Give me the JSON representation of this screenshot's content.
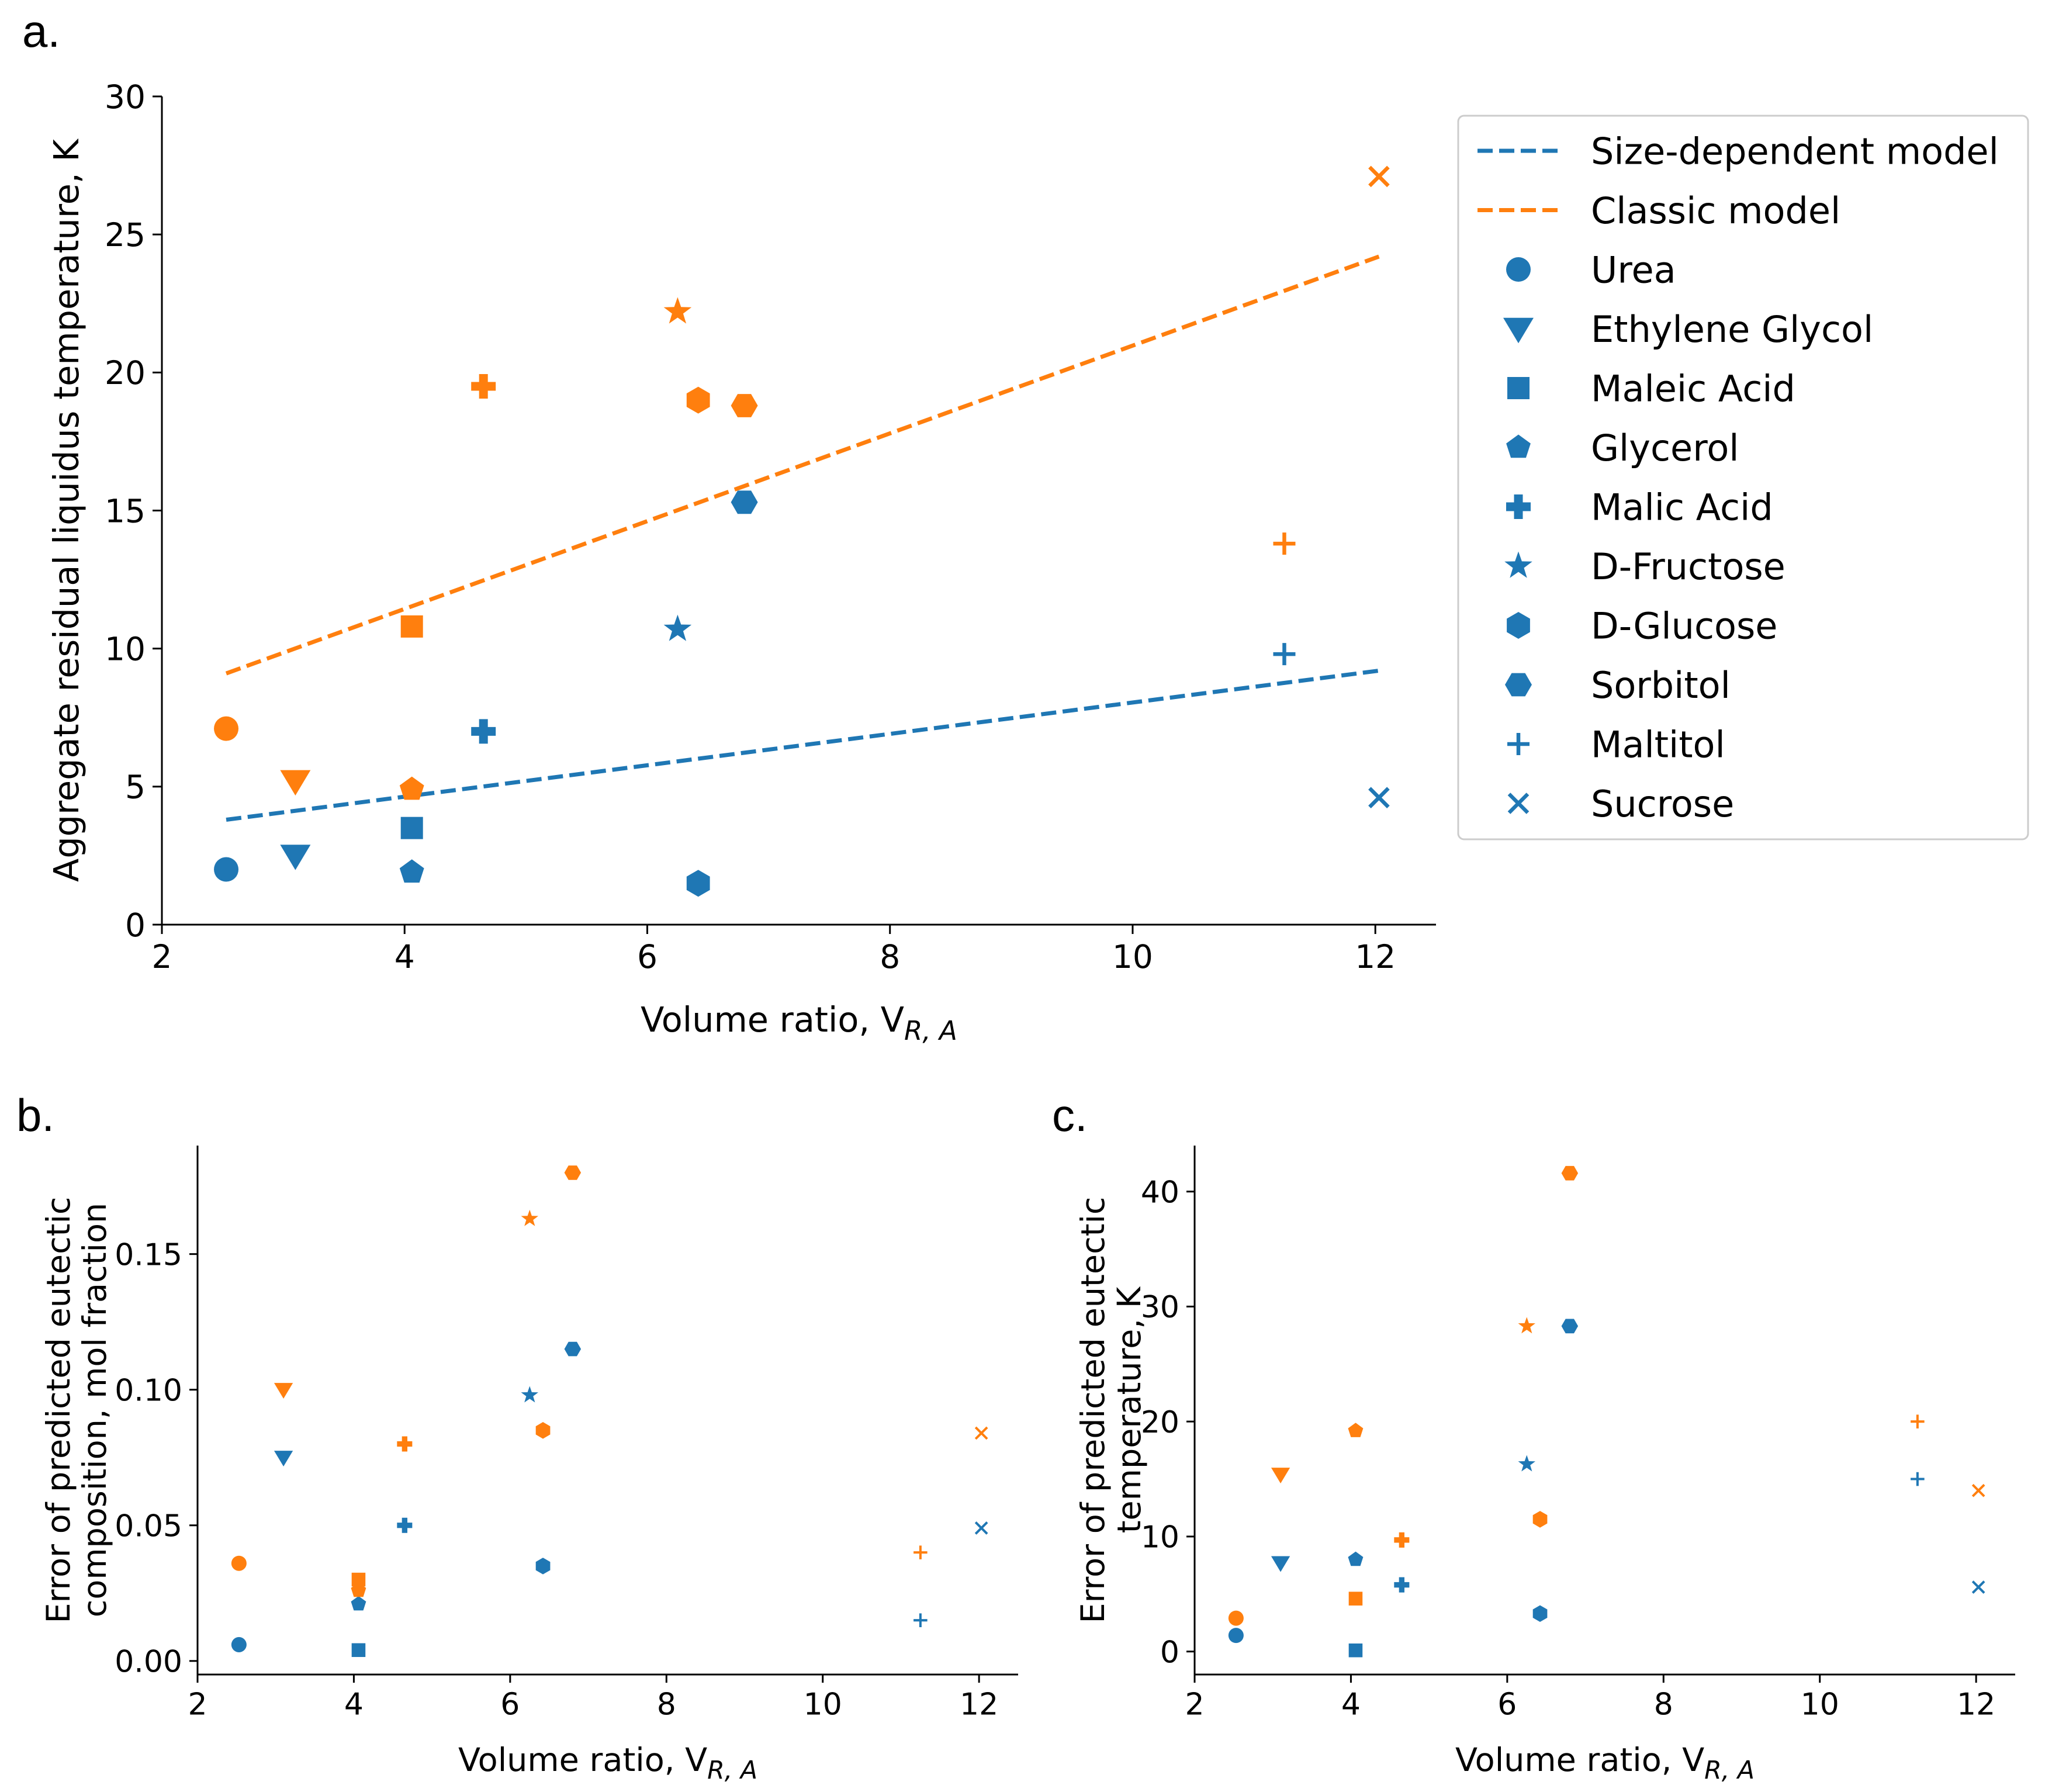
{
  "colors": {
    "size_dependent": "#1f77b4",
    "classic": "#ff7f0e"
  },
  "legend": {
    "lines": [
      {
        "label": "Size-dependent model",
        "series": "size_dependent"
      },
      {
        "label": "Classic model",
        "series": "classic"
      }
    ],
    "markers": [
      {
        "label": "Urea",
        "marker": "circle"
      },
      {
        "label": "Ethylene Glycol",
        "marker": "triangle-down"
      },
      {
        "label": "Maleic Acid",
        "marker": "square"
      },
      {
        "label": "Glycerol",
        "marker": "pentagon"
      },
      {
        "label": "Malic Acid",
        "marker": "plus-filled"
      },
      {
        "label": "D-Fructose",
        "marker": "star"
      },
      {
        "label": "D-Glucose",
        "marker": "hexagon"
      },
      {
        "label": "Sorbitol",
        "marker": "hexagon-flat"
      },
      {
        "label": "Maltitol",
        "marker": "plus"
      },
      {
        "label": "Sucrose",
        "marker": "x"
      }
    ]
  },
  "chart_data": [
    {
      "id": "a",
      "panel_label": "a.",
      "type": "scatter",
      "xlabel": "Volume ratio, V",
      "xlabel_sub": "R, A",
      "ylabel": "Aggregate residual liquidus temperature, K",
      "xlim": [
        2,
        12.5
      ],
      "ylim": [
        0,
        30
      ],
      "xticks": [
        2,
        4,
        6,
        8,
        10,
        12
      ],
      "yticks": [
        0,
        5,
        10,
        15,
        20,
        25,
        30
      ],
      "ytick_decimals": 0,
      "lines": [
        {
          "name": "Size-dependent model",
          "series": "size_dependent",
          "x": [
            2.53,
            12.03
          ],
          "y": [
            3.8,
            9.2
          ]
        },
        {
          "name": "Classic model",
          "series": "classic",
          "x": [
            2.53,
            12.03
          ],
          "y": [
            9.1,
            24.2
          ]
        }
      ],
      "series": [
        {
          "name": "Size-dependent model",
          "series": "size_dependent",
          "points": [
            {
              "compound": "Urea",
              "marker": "circle",
              "x": 2.53,
              "y": 2.0
            },
            {
              "compound": "Ethylene Glycol",
              "marker": "triangle-down",
              "x": 3.1,
              "y": 2.5
            },
            {
              "compound": "Maleic Acid",
              "marker": "square",
              "x": 4.06,
              "y": 3.5
            },
            {
              "compound": "Glycerol",
              "marker": "pentagon",
              "x": 4.06,
              "y": 1.9
            },
            {
              "compound": "Malic Acid",
              "marker": "plus-filled",
              "x": 4.65,
              "y": 7.0
            },
            {
              "compound": "D-Fructose",
              "marker": "star",
              "x": 6.25,
              "y": 10.7
            },
            {
              "compound": "D-Glucose",
              "marker": "hexagon",
              "x": 6.42,
              "y": 1.5
            },
            {
              "compound": "Sorbitol",
              "marker": "hexagon-flat",
              "x": 6.8,
              "y": 15.3
            },
            {
              "compound": "Maltitol",
              "marker": "plus",
              "x": 11.25,
              "y": 9.8
            },
            {
              "compound": "Sucrose",
              "marker": "x",
              "x": 12.03,
              "y": 4.6
            }
          ]
        },
        {
          "name": "Classic model",
          "series": "classic",
          "points": [
            {
              "compound": "Urea",
              "marker": "circle",
              "x": 2.53,
              "y": 7.1
            },
            {
              "compound": "Ethylene Glycol",
              "marker": "triangle-down",
              "x": 3.1,
              "y": 5.2
            },
            {
              "compound": "Maleic Acid",
              "marker": "square",
              "x": 4.06,
              "y": 10.8
            },
            {
              "compound": "Glycerol",
              "marker": "pentagon",
              "x": 4.06,
              "y": 4.9
            },
            {
              "compound": "Malic Acid",
              "marker": "plus-filled",
              "x": 4.65,
              "y": 19.5
            },
            {
              "compound": "D-Fructose",
              "marker": "star",
              "x": 6.25,
              "y": 22.2
            },
            {
              "compound": "D-Glucose",
              "marker": "hexagon",
              "x": 6.42,
              "y": 19.0
            },
            {
              "compound": "Sorbitol",
              "marker": "hexagon-flat",
              "x": 6.8,
              "y": 18.8
            },
            {
              "compound": "Maltitol",
              "marker": "plus",
              "x": 11.25,
              "y": 13.8
            },
            {
              "compound": "Sucrose",
              "marker": "x",
              "x": 12.03,
              "y": 27.1
            }
          ]
        }
      ]
    },
    {
      "id": "b",
      "panel_label": "b.",
      "type": "scatter",
      "xlabel": "Volume ratio, V",
      "xlabel_sub": "R, A",
      "ylabel": [
        "Error of predicted eutectic",
        "composition, mol fraction"
      ],
      "xlim": [
        2,
        12.5
      ],
      "ylim": [
        -0.005,
        0.19
      ],
      "xticks": [
        2,
        4,
        6,
        8,
        10,
        12
      ],
      "yticks": [
        0.0,
        0.05,
        0.1,
        0.15
      ],
      "ytick_decimals": 2,
      "series": [
        {
          "name": "Size-dependent model",
          "series": "size_dependent",
          "points": [
            {
              "compound": "Urea",
              "marker": "circle",
              "x": 2.53,
              "y": 0.006
            },
            {
              "compound": "Ethylene Glycol",
              "marker": "triangle-down",
              "x": 3.1,
              "y": 0.075
            },
            {
              "compound": "Maleic Acid",
              "marker": "square",
              "x": 4.06,
              "y": 0.004
            },
            {
              "compound": "Glycerol",
              "marker": "pentagon",
              "x": 4.06,
              "y": 0.021
            },
            {
              "compound": "Malic Acid",
              "marker": "plus-filled",
              "x": 4.65,
              "y": 0.05
            },
            {
              "compound": "D-Fructose",
              "marker": "star",
              "x": 6.25,
              "y": 0.098
            },
            {
              "compound": "D-Glucose",
              "marker": "hexagon",
              "x": 6.42,
              "y": 0.035
            },
            {
              "compound": "Sorbitol",
              "marker": "hexagon-flat",
              "x": 6.8,
              "y": 0.115
            },
            {
              "compound": "Maltitol",
              "marker": "plus",
              "x": 11.25,
              "y": 0.015
            },
            {
              "compound": "Sucrose",
              "marker": "x",
              "x": 12.03,
              "y": 0.049
            }
          ]
        },
        {
          "name": "Classic model",
          "series": "classic",
          "points": [
            {
              "compound": "Urea",
              "marker": "circle",
              "x": 2.53,
              "y": 0.036
            },
            {
              "compound": "Ethylene Glycol",
              "marker": "triangle-down",
              "x": 3.1,
              "y": 0.1
            },
            {
              "compound": "Maleic Acid",
              "marker": "square",
              "x": 4.06,
              "y": 0.03
            },
            {
              "compound": "Glycerol",
              "marker": "pentagon",
              "x": 4.06,
              "y": 0.026
            },
            {
              "compound": "Malic Acid",
              "marker": "plus-filled",
              "x": 4.65,
              "y": 0.08
            },
            {
              "compound": "D-Fructose",
              "marker": "star",
              "x": 6.25,
              "y": 0.163
            },
            {
              "compound": "D-Glucose",
              "marker": "hexagon",
              "x": 6.42,
              "y": 0.085
            },
            {
              "compound": "Sorbitol",
              "marker": "hexagon-flat",
              "x": 6.8,
              "y": 0.18
            },
            {
              "compound": "Maltitol",
              "marker": "plus",
              "x": 11.25,
              "y": 0.04
            },
            {
              "compound": "Sucrose",
              "marker": "x",
              "x": 12.03,
              "y": 0.084
            }
          ]
        }
      ]
    },
    {
      "id": "c",
      "panel_label": "c.",
      "type": "scatter",
      "xlabel": "Volume ratio, V",
      "xlabel_sub": "R, A",
      "ylabel": [
        "Error of predicted eutectic",
        "temperature, K"
      ],
      "xlim": [
        2,
        12.5
      ],
      "ylim": [
        -2,
        44
      ],
      "xticks": [
        2,
        4,
        6,
        8,
        10,
        12
      ],
      "yticks": [
        0,
        10,
        20,
        30,
        40
      ],
      "ytick_decimals": 0,
      "series": [
        {
          "name": "Size-dependent model",
          "series": "size_dependent",
          "points": [
            {
              "compound": "Urea",
              "marker": "circle",
              "x": 2.53,
              "y": 1.4
            },
            {
              "compound": "Ethylene Glycol",
              "marker": "triangle-down",
              "x": 3.1,
              "y": 7.7
            },
            {
              "compound": "Maleic Acid",
              "marker": "square",
              "x": 4.06,
              "y": 0.1
            },
            {
              "compound": "Glycerol",
              "marker": "pentagon",
              "x": 4.06,
              "y": 8.0
            },
            {
              "compound": "Malic Acid",
              "marker": "plus-filled",
              "x": 4.65,
              "y": 5.8
            },
            {
              "compound": "D-Fructose",
              "marker": "star",
              "x": 6.25,
              "y": 16.3
            },
            {
              "compound": "D-Glucose",
              "marker": "hexagon",
              "x": 6.42,
              "y": 3.3
            },
            {
              "compound": "Sorbitol",
              "marker": "hexagon-flat",
              "x": 6.8,
              "y": 28.3
            },
            {
              "compound": "Maltitol",
              "marker": "plus",
              "x": 11.25,
              "y": 15.0
            },
            {
              "compound": "Sucrose",
              "marker": "x",
              "x": 12.03,
              "y": 5.6
            }
          ]
        },
        {
          "name": "Classic model",
          "series": "classic",
          "points": [
            {
              "compound": "Urea",
              "marker": "circle",
              "x": 2.53,
              "y": 2.9
            },
            {
              "compound": "Ethylene Glycol",
              "marker": "triangle-down",
              "x": 3.1,
              "y": 15.4
            },
            {
              "compound": "Maleic Acid",
              "marker": "square",
              "x": 4.06,
              "y": 4.6
            },
            {
              "compound": "Glycerol",
              "marker": "pentagon",
              "x": 4.06,
              "y": 19.2
            },
            {
              "compound": "Malic Acid",
              "marker": "plus-filled",
              "x": 4.65,
              "y": 9.7
            },
            {
              "compound": "D-Fructose",
              "marker": "star",
              "x": 6.25,
              "y": 28.3
            },
            {
              "compound": "D-Glucose",
              "marker": "hexagon",
              "x": 6.42,
              "y": 11.5
            },
            {
              "compound": "Sorbitol",
              "marker": "hexagon-flat",
              "x": 6.8,
              "y": 41.6
            },
            {
              "compound": "Maltitol",
              "marker": "plus",
              "x": 11.25,
              "y": 20.0
            },
            {
              "compound": "Sucrose",
              "marker": "x",
              "x": 12.03,
              "y": 14.0
            }
          ]
        }
      ]
    }
  ]
}
